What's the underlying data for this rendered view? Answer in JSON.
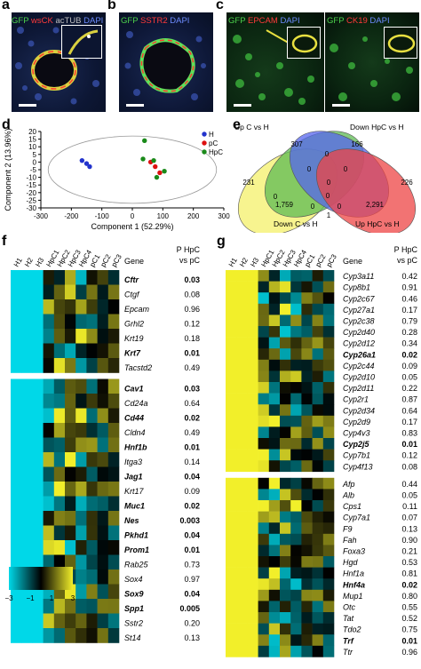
{
  "panels": {
    "a": {
      "letter": "a",
      "gfp": "GFP",
      "wsck": "wsCK",
      "actub": "acTUB",
      "dapi": "DAPI"
    },
    "b": {
      "letter": "b",
      "gfp": "GFP",
      "sstr2": "SSTR2",
      "dapi": "DAPI"
    },
    "c": {
      "letter": "c",
      "left_gfp": "GFP",
      "left_epcam": "EPCAM",
      "left_dapi": "DAPI",
      "right_gfp": "GFP",
      "right_ck19": "CK19",
      "right_dapi": "DAPI"
    },
    "d": {
      "letter": "d"
    },
    "e": {
      "letter": "e"
    },
    "f": {
      "letter": "f"
    },
    "g": {
      "letter": "g"
    }
  },
  "colors": {
    "H": "#2233cc",
    "pC": "#dd1111",
    "HpC": "#1a8a1a",
    "venn_yellow": "#f4f06a",
    "venn_green": "#5dbb53",
    "venn_blue": "#5566ee",
    "venn_red": "#ee4444",
    "heat_low": "#00d8e8",
    "heat_mid": "#000000",
    "heat_high": "#f2ef2a"
  },
  "chart_data": [
    {
      "type": "scatter",
      "panel": "d",
      "xlabel": "Component 1 (52.29%)",
      "ylabel": "Component 2 (13.96%)",
      "xlim": [
        -300,
        300
      ],
      "ylim": [
        -30,
        20
      ],
      "xticks": [
        -300,
        -200,
        -100,
        0,
        100,
        200,
        300
      ],
      "yticks": [
        -30,
        -25,
        -20,
        -15,
        -10,
        -5,
        0,
        5,
        10,
        15,
        20
      ],
      "legend_placement": "top-right",
      "series": [
        {
          "name": "H",
          "points": [
            [
              -165,
              1
            ],
            [
              -150,
              -1
            ],
            [
              -140,
              -3
            ]
          ]
        },
        {
          "name": "pC",
          "points": [
            [
              60,
              0
            ],
            [
              75,
              -3
            ],
            [
              90,
              -7
            ]
          ]
        },
        {
          "name": "HpC",
          "points": [
            [
              40,
              14
            ],
            [
              35,
              2
            ],
            [
              70,
              1
            ],
            [
              80,
              -10
            ],
            [
              105,
              -6
            ]
          ]
        }
      ]
    },
    {
      "type": "venn",
      "panel": "e",
      "sets": [
        "Up C vs H",
        "Down HpC vs H",
        "Down C vs H",
        "Up HpC vs H"
      ],
      "regions": [
        "231",
        "307",
        "0",
        "166",
        "226",
        "0",
        "0",
        "0",
        "0",
        "1,759",
        "0",
        "2,291",
        "0",
        "0",
        "1"
      ]
    },
    {
      "type": "heatmap",
      "panel": "f",
      "columns": [
        "H1",
        "H2",
        "H3",
        "HpC1",
        "HpC2",
        "HpC3",
        "HpC4",
        "pC1",
        "pC2",
        "pC3"
      ],
      "gene_header": "Gene",
      "p_header": "P HpC vs pC",
      "colorbar_ticks": [
        "−3",
        "−1",
        "1",
        "3"
      ],
      "groups": [
        {
          "genes": [
            {
              "gene": "Cftr",
              "p": "0.03",
              "bold": true
            },
            {
              "gene": "Ctgf",
              "p": "0.08",
              "bold": false
            },
            {
              "gene": "Epcam",
              "p": "0.96",
              "bold": false
            },
            {
              "gene": "Grhl2",
              "p": "0.12",
              "bold": false
            },
            {
              "gene": "Krt19",
              "p": "0.18",
              "bold": false
            },
            {
              "gene": "Krt7",
              "p": "0.01",
              "bold": true
            },
            {
              "gene": "Tacstd2",
              "p": "0.49",
              "bold": false
            }
          ]
        },
        {
          "genes": [
            {
              "gene": "Cav1",
              "p": "0.03",
              "bold": true
            },
            {
              "gene": "Cd24a",
              "p": "0.64",
              "bold": false
            },
            {
              "gene": "Cd44",
              "p": "0.02",
              "bold": true
            },
            {
              "gene": "Cldn4",
              "p": "0.49",
              "bold": false
            },
            {
              "gene": "Hnf1b",
              "p": "0.01",
              "bold": true
            },
            {
              "gene": "Itga3",
              "p": "0.14",
              "bold": false
            },
            {
              "gene": "Jag1",
              "p": "0.04",
              "bold": true
            },
            {
              "gene": "Krt17",
              "p": "0.09",
              "bold": false
            },
            {
              "gene": "Muc1",
              "p": "0.02",
              "bold": true
            },
            {
              "gene": "Nes",
              "p": "0.003",
              "bold": true
            },
            {
              "gene": "Pkhd1",
              "p": "0.04",
              "bold": true
            },
            {
              "gene": "Prom1",
              "p": "0.01",
              "bold": true
            },
            {
              "gene": "Rab25",
              "p": "0.73",
              "bold": false
            },
            {
              "gene": "Sox4",
              "p": "0.97",
              "bold": false
            },
            {
              "gene": "Sox9",
              "p": "0.04",
              "bold": true
            },
            {
              "gene": "Spp1",
              "p": "0.005",
              "bold": true
            },
            {
              "gene": "Sstr2",
              "p": "0.20",
              "bold": false
            },
            {
              "gene": "St14",
              "p": "0.13",
              "bold": false
            }
          ]
        }
      ]
    },
    {
      "type": "heatmap",
      "panel": "g",
      "columns": [
        "H1",
        "H2",
        "H3",
        "HpC1",
        "HpC2",
        "HpC3",
        "HpC4",
        "pC1",
        "pC2",
        "pC3"
      ],
      "gene_header": "Gene",
      "p_header": "P HpC vs pC",
      "groups": [
        {
          "genes": [
            {
              "gene": "Cyp3a11",
              "p": "0.42",
              "bold": false
            },
            {
              "gene": "Cyp8b1",
              "p": "0.91",
              "bold": false
            },
            {
              "gene": "Cyp2c67",
              "p": "0.46",
              "bold": false
            },
            {
              "gene": "Cyp27a1",
              "p": "0.17",
              "bold": false
            },
            {
              "gene": "Cyp2c38",
              "p": "0.79",
              "bold": false
            },
            {
              "gene": "Cyp2d40",
              "p": "0.28",
              "bold": false
            },
            {
              "gene": "Cyp2d12",
              "p": "0.34",
              "bold": false
            },
            {
              "gene": "Cyp26a1",
              "p": "0.02",
              "bold": true
            },
            {
              "gene": "Cyp2c44",
              "p": "0.09",
              "bold": false
            },
            {
              "gene": "Cyp2d10",
              "p": "0.05",
              "bold": false
            },
            {
              "gene": "Cyp2d11",
              "p": "0.22",
              "bold": false
            },
            {
              "gene": "Cyp2r1",
              "p": "0.87",
              "bold": false
            },
            {
              "gene": "Cyp2d34",
              "p": "0.64",
              "bold": false
            },
            {
              "gene": "Cyp2d9",
              "p": "0.17",
              "bold": false
            },
            {
              "gene": "Cyp4v3",
              "p": "0.83",
              "bold": false
            },
            {
              "gene": "Cyp2j5",
              "p": "0.01",
              "bold": true
            },
            {
              "gene": "Cyp7b1",
              "p": "0.12",
              "bold": false
            },
            {
              "gene": "Cyp4f13",
              "p": "0.08",
              "bold": false
            }
          ]
        },
        {
          "genes": [
            {
              "gene": "Afp",
              "p": "0.44",
              "bold": false
            },
            {
              "gene": "Alb",
              "p": "0.05",
              "bold": false
            },
            {
              "gene": "Cps1",
              "p": "0.11",
              "bold": false
            },
            {
              "gene": "Cyp7a1",
              "p": "0.07",
              "bold": false
            },
            {
              "gene": "F9",
              "p": "0.13",
              "bold": false
            },
            {
              "gene": "Fah",
              "p": "0.90",
              "bold": false
            },
            {
              "gene": "Foxa3",
              "p": "0.21",
              "bold": false
            },
            {
              "gene": "Hgd",
              "p": "0.53",
              "bold": false
            },
            {
              "gene": "Hnf1a",
              "p": "0.81",
              "bold": false
            },
            {
              "gene": "Hnf4a",
              "p": "0.02",
              "bold": true
            },
            {
              "gene": "Mup1",
              "p": "0.80",
              "bold": false
            },
            {
              "gene": "Otc",
              "p": "0.55",
              "bold": false
            },
            {
              "gene": "Tat",
              "p": "0.52",
              "bold": false
            },
            {
              "gene": "Tdo2",
              "p": "0.75",
              "bold": false
            },
            {
              "gene": "Trf",
              "p": "0.01",
              "bold": true
            },
            {
              "gene": "Ttr",
              "p": "0.96",
              "bold": false
            }
          ]
        }
      ]
    }
  ]
}
